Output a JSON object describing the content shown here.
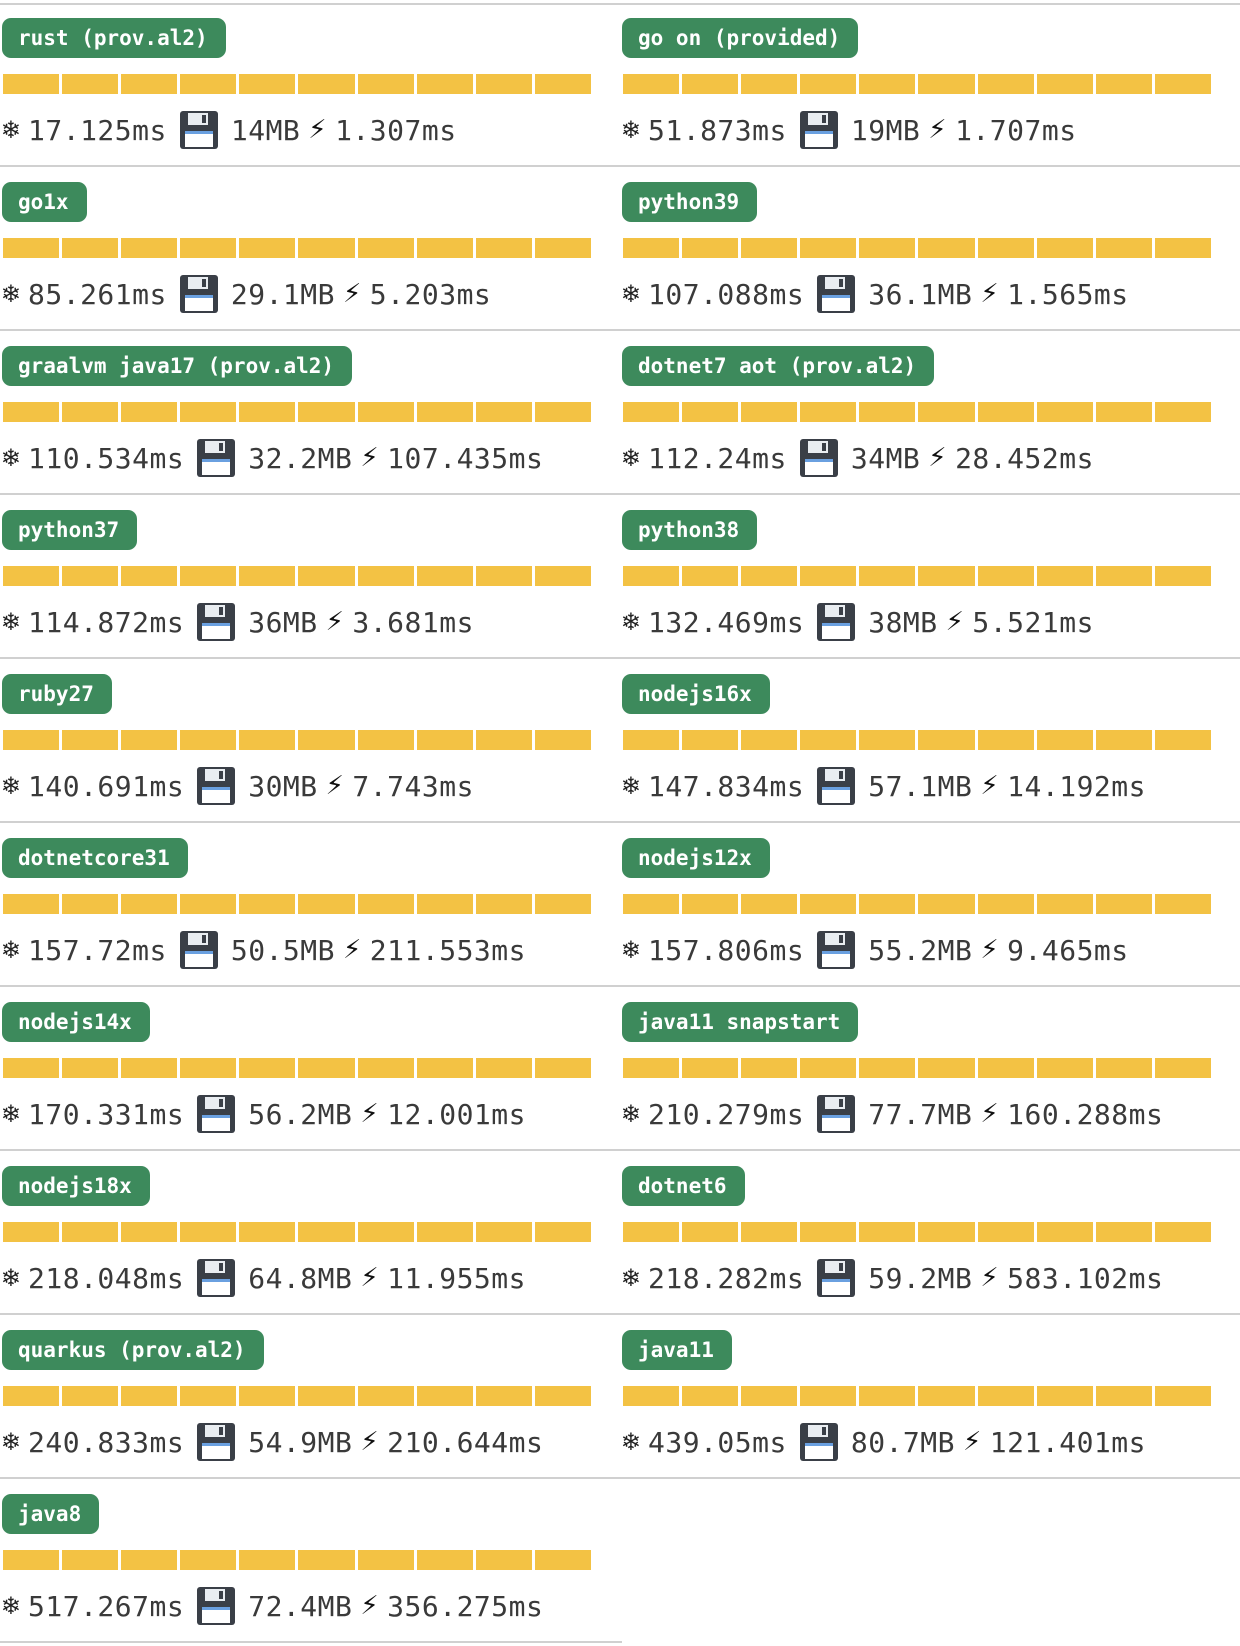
{
  "colors": {
    "badge_bg": "#3d8a5c",
    "badge_text": "#ffffff",
    "bar_fill": "#f3c244",
    "divider": "#d0d0d0",
    "stat_text": "#3a3a3a"
  },
  "icons": {
    "cold_start": "snowflake-icon",
    "memory": "floppy-disk-icon",
    "duration": "lightning-bolt-icon"
  },
  "rows": [
    {
      "left": {
        "name": "rust (prov.al2)",
        "cold": "17.125ms",
        "mem": "14MB",
        "dur": "1.307ms"
      },
      "right": {
        "name": "go on (provided)",
        "cold": "51.873ms",
        "mem": "19MB",
        "dur": "1.707ms"
      }
    },
    {
      "left": {
        "name": "go1x",
        "cold": "85.261ms",
        "mem": "29.1MB",
        "dur": "5.203ms"
      },
      "right": {
        "name": "python39",
        "cold": "107.088ms",
        "mem": "36.1MB",
        "dur": "1.565ms"
      }
    },
    {
      "left": {
        "name": "graalvm java17 (prov.al2)",
        "cold": "110.534ms",
        "mem": "32.2MB",
        "dur": "107.435ms"
      },
      "right": {
        "name": "dotnet7 aot (prov.al2)",
        "cold": "112.24ms",
        "mem": "34MB",
        "dur": "28.452ms"
      }
    },
    {
      "left": {
        "name": "python37",
        "cold": "114.872ms",
        "mem": "36MB",
        "dur": "3.681ms"
      },
      "right": {
        "name": "python38",
        "cold": "132.469ms",
        "mem": "38MB",
        "dur": "5.521ms"
      }
    },
    {
      "left": {
        "name": "ruby27",
        "cold": "140.691ms",
        "mem": "30MB",
        "dur": "7.743ms"
      },
      "right": {
        "name": "nodejs16x",
        "cold": "147.834ms",
        "mem": "57.1MB",
        "dur": "14.192ms"
      }
    },
    {
      "left": {
        "name": "dotnetcore31",
        "cold": "157.72ms",
        "mem": "50.5MB",
        "dur": "211.553ms"
      },
      "right": {
        "name": "nodejs12x",
        "cold": "157.806ms",
        "mem": "55.2MB",
        "dur": "9.465ms"
      }
    },
    {
      "left": {
        "name": "nodejs14x",
        "cold": "170.331ms",
        "mem": "56.2MB",
        "dur": "12.001ms"
      },
      "right": {
        "name": "java11 snapstart",
        "cold": "210.279ms",
        "mem": "77.7MB",
        "dur": "160.288ms"
      }
    },
    {
      "left": {
        "name": "nodejs18x",
        "cold": "218.048ms",
        "mem": "64.8MB",
        "dur": "11.955ms"
      },
      "right": {
        "name": "dotnet6",
        "cold": "218.282ms",
        "mem": "59.2MB",
        "dur": "583.102ms"
      }
    },
    {
      "left": {
        "name": "quarkus (prov.al2)",
        "cold": "240.833ms",
        "mem": "54.9MB",
        "dur": "210.644ms"
      },
      "right": {
        "name": "java11",
        "cold": "439.05ms",
        "mem": "80.7MB",
        "dur": "121.401ms"
      }
    },
    {
      "left": {
        "name": "java8",
        "cold": "517.267ms",
        "mem": "72.4MB",
        "dur": "356.275ms"
      }
    }
  ]
}
